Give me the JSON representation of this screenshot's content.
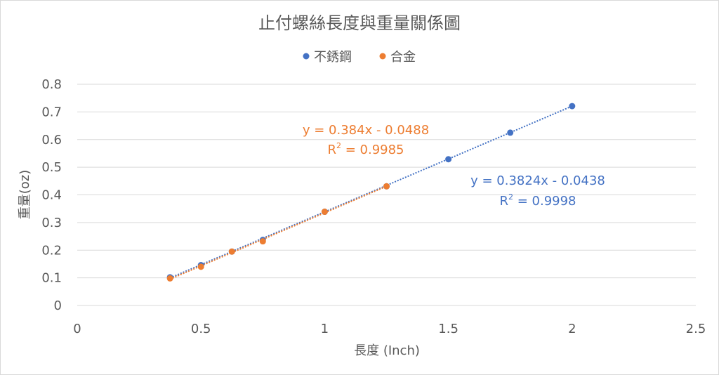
{
  "chart_data": {
    "type": "scatter",
    "title": "止付螺絲長度與重量關係圖",
    "xlabel": "長度 (Inch)",
    "ylabel": "重量(oz)",
    "xlim": [
      0,
      2.5
    ],
    "ylim": [
      0,
      0.8
    ],
    "x_ticks": [
      "0",
      "0.5",
      "1",
      "1.5",
      "2",
      "2.5"
    ],
    "y_ticks": [
      "0",
      "0.1",
      "0.2",
      "0.3",
      "0.4",
      "0.5",
      "0.6",
      "0.7",
      "0.8"
    ],
    "grid": "horizontal",
    "legend_position": "top",
    "series": [
      {
        "name": "不銹鋼",
        "color": "#4472c4",
        "x": [
          0.375,
          0.5,
          0.625,
          0.75,
          1.0,
          1.25,
          1.5,
          1.75,
          2.0
        ],
        "y": [
          0.102,
          0.146,
          0.195,
          0.237,
          0.339,
          0.431,
          0.529,
          0.625,
          0.721
        ],
        "trendline": {
          "slope": 0.3824,
          "intercept": -0.0438,
          "equation": "y = 0.3824x - 0.0438",
          "r2_prefix": "R",
          "r2_sup": "2",
          "r2_value": " = 0.9998"
        }
      },
      {
        "name": "合金",
        "color": "#ed7d31",
        "x": [
          0.375,
          0.5,
          0.625,
          0.75,
          1.0,
          1.25
        ],
        "y": [
          0.098,
          0.14,
          0.195,
          0.232,
          0.339,
          0.431
        ],
        "trendline": {
          "slope": 0.384,
          "intercept": -0.0488,
          "equation": "y = 0.384x - 0.0488",
          "r2_prefix": "R",
          "r2_sup": "2",
          "r2_value": " = 0.9985"
        }
      }
    ]
  }
}
